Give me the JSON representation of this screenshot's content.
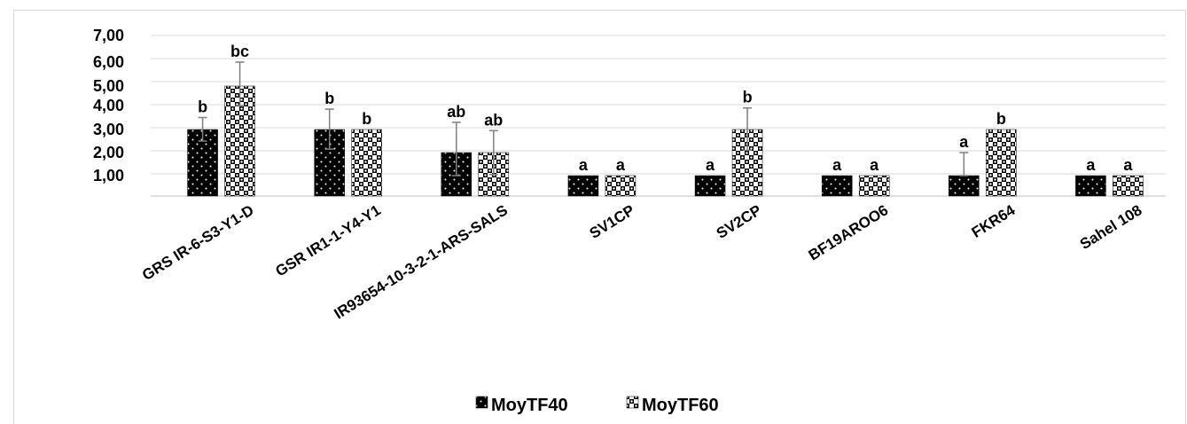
{
  "chart_data": {
    "type": "bar",
    "categories": [
      "GRS IR-6-S3-Y1-D",
      "GSR IR1-1-Y4-Y1",
      "IR93654-10-3-2-1-ARS-SALS",
      "SV1CP",
      "SV2CP",
      "BF19AROO6",
      "FKR64",
      "Sahel 108"
    ],
    "y_tick_labels": [
      "7,00",
      "6,00",
      "5,00",
      "4,00",
      "3,00",
      "2,00",
      "1,00"
    ],
    "series": [
      {
        "name": "MoyTF40",
        "values": [
          3.0,
          3.0,
          2.0,
          1.0,
          1.0,
          1.0,
          1.0,
          1.0
        ],
        "error": [
          0.5,
          0.85,
          1.3,
          0.0,
          0.0,
          0.0,
          1.0,
          0.0
        ],
        "labels": [
          "b",
          "b",
          "ab",
          "a",
          "a",
          "a",
          "a",
          "a"
        ]
      },
      {
        "name": "MoyTF60",
        "values": [
          5.0,
          3.0,
          2.0,
          1.0,
          3.0,
          1.0,
          3.0,
          1.0
        ],
        "error": [
          1.0,
          0.0,
          0.95,
          0.0,
          0.9,
          0.0,
          0.0,
          0.0
        ],
        "labels": [
          "bc",
          "b",
          "ab",
          "a",
          "b",
          "a",
          "b",
          "a"
        ]
      }
    ],
    "colors": {
      "bar_dark": "#000000",
      "bar_light": "#ffffff",
      "grid": "#d9d9d9",
      "error": "#7f7f7f"
    },
    "grid": true,
    "legend_position": "bottom"
  }
}
